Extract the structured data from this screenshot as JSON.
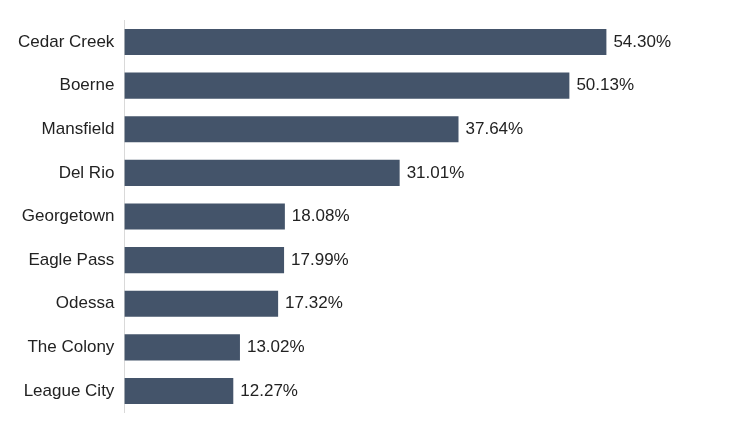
{
  "chart_data": {
    "type": "bar",
    "orientation": "horizontal",
    "categories": [
      "Cedar Creek",
      "Boerne",
      "Mansfield",
      "Del Rio",
      "Georgetown",
      "Eagle Pass",
      "Odessa",
      "The Colony",
      "League City"
    ],
    "values": [
      54.3,
      50.13,
      37.64,
      31.01,
      18.08,
      17.99,
      17.32,
      13.02,
      12.27
    ],
    "value_labels": [
      "54.30%",
      "50.13%",
      "37.64%",
      "31.01%",
      "18.08%",
      "17.99%",
      "17.32%",
      "13.02%",
      "12.27%"
    ],
    "color": "#44546a",
    "data_labels": true,
    "tick_labels": "y",
    "grid": false
  }
}
